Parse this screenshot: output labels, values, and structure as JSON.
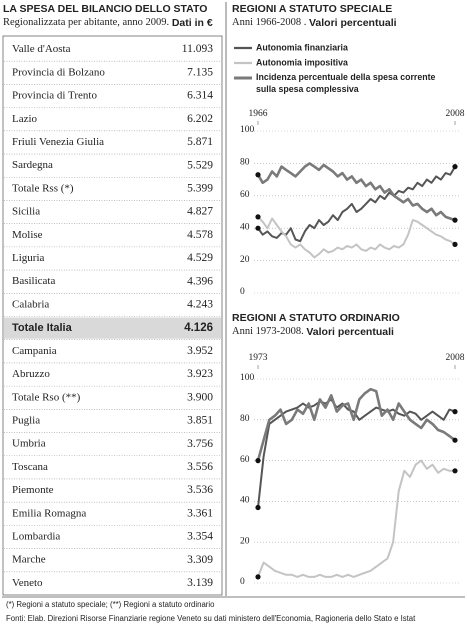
{
  "table": {
    "title": "LA SPESA DEL BILANCIO DELLO STATO",
    "subtitle": "Regionalizzata per abitante, anno 2009.",
    "subtitle_bold": "Dati in €",
    "highlight_row": 12,
    "rows": [
      [
        "Valle d'Aosta",
        "11.093"
      ],
      [
        "Provincia di Bolzano",
        "7.135"
      ],
      [
        "Provincia di Trento",
        "6.314"
      ],
      [
        "Lazio",
        "6.202"
      ],
      [
        "Friuli Venezia Giulia",
        "5.871"
      ],
      [
        "Sardegna",
        "5.529"
      ],
      [
        "Totale Rss (*)",
        "5.399"
      ],
      [
        "Sicilia",
        "4.827"
      ],
      [
        "Molise",
        "4.578"
      ],
      [
        "Liguria",
        "4.529"
      ],
      [
        "Basilicata",
        "4.396"
      ],
      [
        "Calabria",
        "4.243"
      ],
      [
        "Totale Italia",
        "4.126"
      ],
      [
        "Campania",
        "3.952"
      ],
      [
        "Abruzzo",
        "3.923"
      ],
      [
        "Totale Rso (**)",
        "3.900"
      ],
      [
        "Puglia",
        "3.851"
      ],
      [
        "Umbria",
        "3.756"
      ],
      [
        "Toscana",
        "3.556"
      ],
      [
        "Piemonte",
        "3.536"
      ],
      [
        "Emilia Romagna",
        "3.361"
      ],
      [
        "Lombardia",
        "3.354"
      ],
      [
        "Marche",
        "3.309"
      ],
      [
        "Veneto",
        "3.139"
      ]
    ]
  },
  "chart_data": [
    {
      "type": "line",
      "title": "REGIONI A STATUTO SPECIALE",
      "subtitle": "Anni 1966-2008 .",
      "subtitle_bold": "Valori percentuali",
      "grid": true,
      "endpoint_markers": true,
      "x": [
        1966,
        1967,
        1968,
        1969,
        1970,
        1971,
        1972,
        1973,
        1974,
        1975,
        1976,
        1977,
        1978,
        1979,
        1980,
        1981,
        1982,
        1983,
        1984,
        1985,
        1986,
        1987,
        1988,
        1989,
        1990,
        1991,
        1992,
        1993,
        1994,
        1995,
        1996,
        1997,
        1998,
        1999,
        2000,
        2001,
        2002,
        2003,
        2004,
        2005,
        2006,
        2007,
        2008
      ],
      "xlim": [
        1966,
        2008
      ],
      "xticks": [
        1966,
        2008
      ],
      "ylim": [
        0,
        100
      ],
      "yticks": [
        0,
        20,
        40,
        60,
        80,
        100
      ],
      "series": [
        {
          "name": "Autonomia finanziaria",
          "color": "#555555",
          "values": [
            40,
            36,
            38,
            35,
            34,
            37,
            36,
            40,
            33,
            32,
            38,
            42,
            40,
            45,
            42,
            44,
            48,
            45,
            50,
            52,
            55,
            50,
            52,
            55,
            58,
            56,
            60,
            58,
            62,
            60,
            63,
            62,
            65,
            64,
            68,
            66,
            70,
            68,
            72,
            70,
            74,
            73,
            78
          ]
        },
        {
          "name": "Autonomia impositiva",
          "color": "#c4c4c4",
          "values": [
            47,
            44,
            40,
            46,
            42,
            38,
            35,
            30,
            28,
            30,
            27,
            25,
            22,
            24,
            27,
            25,
            26,
            28,
            27,
            29,
            28,
            30,
            27,
            26,
            28,
            27,
            30,
            28,
            27,
            29,
            28,
            30,
            36,
            45,
            44,
            42,
            40,
            38,
            36,
            35,
            33,
            32,
            30
          ]
        },
        {
          "name": "Incidenza percentuale della spesa corrente sulla spesa complessiva",
          "color": "#7a7a7a",
          "values": [
            73,
            68,
            70,
            75,
            72,
            78,
            76,
            74,
            72,
            75,
            78,
            80,
            78,
            76,
            79,
            77,
            75,
            72,
            74,
            70,
            72,
            68,
            70,
            66,
            68,
            64,
            66,
            62,
            64,
            60,
            58,
            56,
            58,
            54,
            55,
            52,
            50,
            52,
            48,
            50,
            47,
            46,
            45
          ]
        }
      ]
    },
    {
      "type": "line",
      "title": "REGIONI A STATUTO ORDINARIO",
      "subtitle": "Anni 1973-2008.",
      "subtitle_bold": "Valori percentuali",
      "grid": true,
      "endpoint_markers": true,
      "x": [
        1973,
        1974,
        1975,
        1976,
        1977,
        1978,
        1979,
        1980,
        1981,
        1982,
        1983,
        1984,
        1985,
        1986,
        1987,
        1988,
        1989,
        1990,
        1991,
        1992,
        1993,
        1994,
        1995,
        1996,
        1997,
        1998,
        1999,
        2000,
        2001,
        2002,
        2003,
        2004,
        2005,
        2006,
        2007,
        2008
      ],
      "xlim": [
        1973,
        2008
      ],
      "xticks": [
        1973,
        2008
      ],
      "ylim": [
        0,
        100
      ],
      "yticks": [
        0,
        20,
        40,
        60,
        80,
        100
      ],
      "series": [
        {
          "color": "#555555",
          "values": [
            37,
            62,
            78,
            80,
            82,
            84,
            85,
            86,
            88,
            86,
            87,
            89,
            88,
            90,
            86,
            88,
            85,
            84,
            80,
            82,
            84,
            86,
            85,
            84,
            85,
            83,
            82,
            84,
            83,
            80,
            82,
            84,
            82,
            80,
            85,
            84
          ]
        },
        {
          "color": "#c4c4c4",
          "values": [
            3,
            10,
            8,
            6,
            5,
            4,
            4,
            3,
            4,
            3,
            3,
            4,
            3,
            3,
            4,
            3,
            4,
            3,
            4,
            5,
            6,
            8,
            10,
            12,
            20,
            45,
            55,
            52,
            58,
            60,
            56,
            58,
            54,
            56,
            55,
            55
          ]
        },
        {
          "color": "#7a7a7a",
          "values": [
            60,
            70,
            80,
            82,
            85,
            78,
            80,
            85,
            83,
            88,
            80,
            90,
            86,
            92,
            84,
            87,
            88,
            80,
            90,
            93,
            95,
            94,
            82,
            85,
            80,
            88,
            84,
            80,
            78,
            76,
            80,
            78,
            75,
            74,
            72,
            70
          ]
        }
      ]
    }
  ],
  "footnotes": [
    "(*) Regioni a statuto speciale; (**) Regioni a statuto ordinario",
    "Fonti: Elab. Direzioni Risorse Finanziarie regione Veneto su dati ministero dell'Economia, Ragioneria dello Stato e Istat"
  ]
}
